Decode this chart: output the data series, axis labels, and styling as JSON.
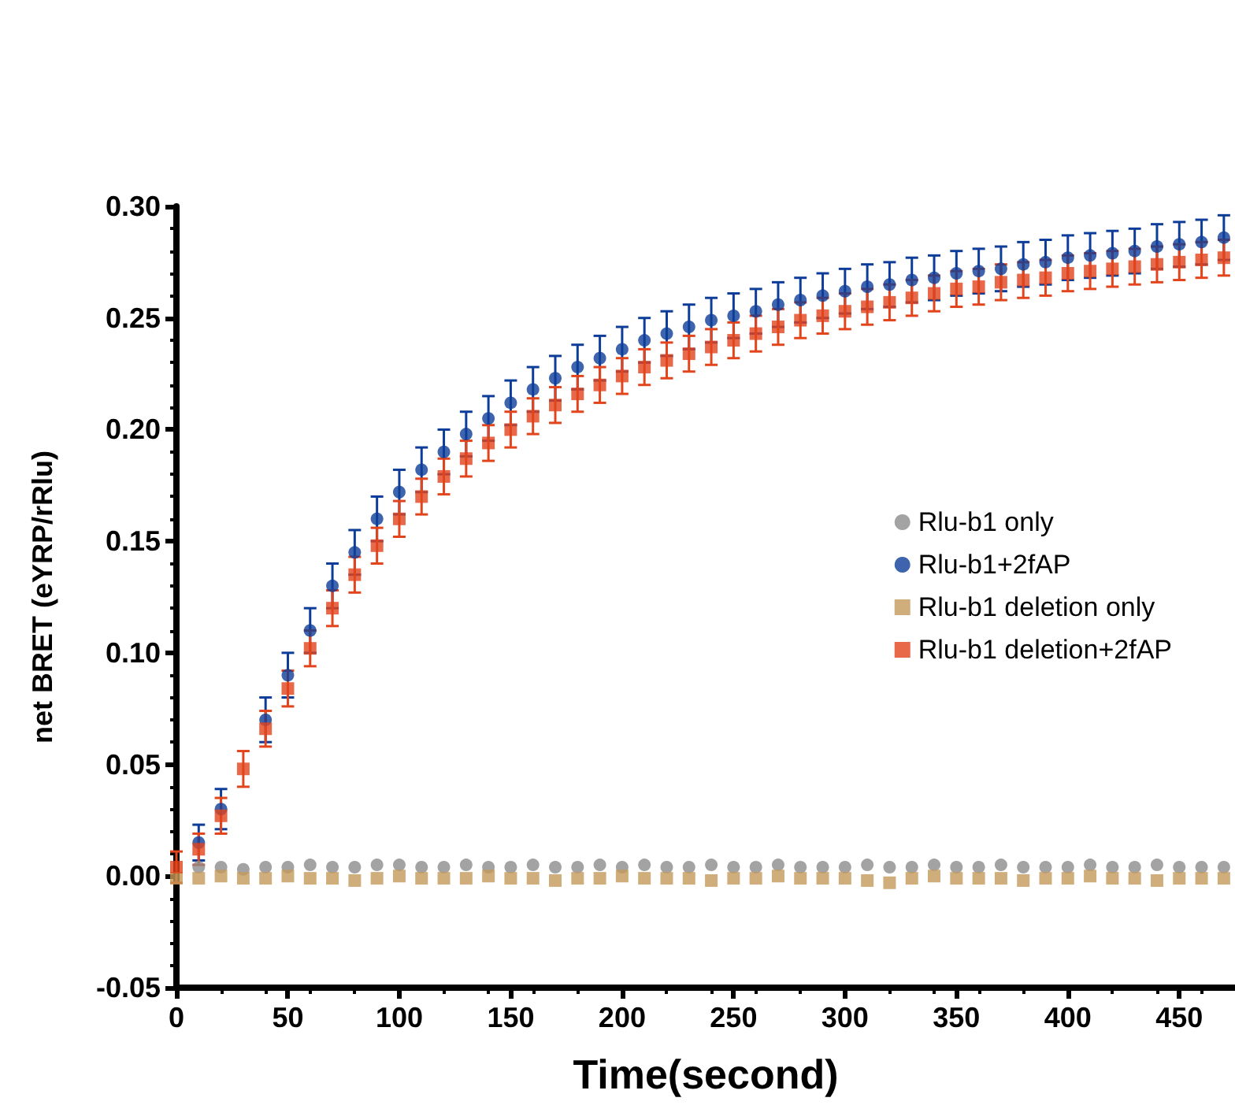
{
  "chart_data": {
    "type": "scatter",
    "xlabel": "Time(second)",
    "ylabel": "net BRET (eYRP/rRlu)",
    "x": [
      0,
      10,
      20,
      30,
      40,
      50,
      60,
      70,
      80,
      90,
      100,
      110,
      120,
      130,
      140,
      150,
      160,
      170,
      180,
      190,
      200,
      210,
      220,
      230,
      240,
      250,
      260,
      270,
      280,
      290,
      300,
      310,
      320,
      330,
      340,
      350,
      360,
      370,
      380,
      390,
      400,
      410,
      420,
      430,
      440,
      450,
      460,
      470
    ],
    "series": [
      {
        "name": "Rlu-b1 only",
        "color": "#8c8c8c",
        "marker": "circle",
        "values": [
          null,
          0.004,
          0.004,
          0.003,
          0.004,
          0.004,
          0.005,
          0.004,
          0.004,
          0.005,
          0.005,
          0.004,
          0.004,
          0.005,
          0.004,
          0.004,
          0.005,
          0.004,
          0.004,
          0.005,
          0.004,
          0.005,
          0.004,
          0.004,
          0.005,
          0.004,
          0.004,
          0.005,
          0.004,
          0.004,
          0.004,
          0.005,
          0.004,
          0.004,
          0.005,
          0.004,
          0.004,
          0.005,
          0.004,
          0.004,
          0.004,
          0.005,
          0.004,
          0.004,
          0.005,
          0.004,
          0.004,
          0.004
        ]
      },
      {
        "name": "Rlu-b1+2fAP",
        "color": "#0d3d99",
        "marker": "circle",
        "values": [
          null,
          0.015,
          0.03,
          null,
          0.07,
          0.09,
          0.11,
          0.13,
          0.145,
          0.16,
          0.172,
          0.182,
          0.19,
          0.198,
          0.205,
          0.212,
          0.218,
          0.223,
          0.228,
          0.232,
          0.236,
          0.24,
          0.243,
          0.246,
          0.249,
          0.251,
          0.253,
          0.256,
          0.258,
          0.26,
          0.262,
          0.264,
          0.265,
          0.267,
          0.268,
          0.27,
          0.271,
          0.272,
          0.274,
          0.275,
          0.277,
          0.278,
          0.279,
          0.28,
          0.282,
          0.283,
          0.284,
          0.286
        ],
        "errors": [
          null,
          0.008,
          0.009,
          null,
          0.01,
          0.01,
          0.01,
          0.01,
          0.01,
          0.01,
          0.01,
          0.01,
          0.01,
          0.01,
          0.01,
          0.01,
          0.01,
          0.01,
          0.01,
          0.01,
          0.01,
          0.01,
          0.01,
          0.01,
          0.01,
          0.01,
          0.01,
          0.01,
          0.01,
          0.01,
          0.01,
          0.01,
          0.01,
          0.01,
          0.01,
          0.01,
          0.01,
          0.01,
          0.01,
          0.01,
          0.01,
          0.01,
          0.01,
          0.01,
          0.01,
          0.01,
          0.01,
          0.01
        ]
      },
      {
        "name": "Rlu-b1 deletion only",
        "color": "#c49a5a",
        "marker": "square",
        "values": [
          -0.001,
          -0.001,
          0,
          -0.001,
          -0.001,
          0,
          -0.001,
          -0.001,
          -0.002,
          -0.001,
          0,
          -0.001,
          -0.001,
          -0.001,
          0,
          -0.001,
          -0.001,
          -0.002,
          -0.001,
          -0.001,
          0,
          -0.001,
          -0.001,
          -0.001,
          -0.002,
          -0.001,
          -0.001,
          0,
          -0.001,
          -0.001,
          -0.001,
          -0.002,
          -0.003,
          -0.001,
          0,
          -0.001,
          -0.001,
          -0.001,
          -0.002,
          -0.001,
          -0.001,
          0,
          -0.001,
          -0.001,
          -0.002,
          -0.001,
          -0.001,
          -0.001
        ]
      },
      {
        "name": "Rlu-b1 deletion+2fAP",
        "color": "#e2441c",
        "marker": "square",
        "values": [
          0.004,
          0.012,
          0.027,
          0.048,
          0.066,
          0.084,
          0.102,
          0.12,
          0.135,
          0.148,
          0.16,
          0.17,
          0.179,
          0.187,
          0.194,
          0.2,
          0.206,
          0.211,
          0.216,
          0.22,
          0.224,
          0.228,
          0.231,
          0.234,
          0.237,
          0.24,
          0.243,
          0.246,
          0.249,
          0.251,
          0.253,
          0.255,
          0.257,
          0.259,
          0.261,
          0.263,
          0.264,
          0.266,
          0.267,
          0.268,
          0.27,
          0.271,
          0.272,
          0.273,
          0.274,
          0.275,
          0.276,
          0.277
        ],
        "errors": [
          0.007,
          0.007,
          0.008,
          0.008,
          0.008,
          0.008,
          0.008,
          0.008,
          0.008,
          0.008,
          0.008,
          0.008,
          0.008,
          0.008,
          0.008,
          0.008,
          0.008,
          0.008,
          0.008,
          0.008,
          0.008,
          0.008,
          0.008,
          0.008,
          0.008,
          0.008,
          0.008,
          0.008,
          0.008,
          0.008,
          0.008,
          0.008,
          0.008,
          0.008,
          0.008,
          0.008,
          0.008,
          0.008,
          0.008,
          0.008,
          0.008,
          0.008,
          0.008,
          0.008,
          0.008,
          0.008,
          0.008,
          0.008
        ]
      }
    ],
    "xlim": [
      0,
      475
    ],
    "xticks": [
      0,
      50,
      100,
      150,
      200,
      250,
      300,
      350,
      400,
      450
    ],
    "ylim": [
      -0.05,
      0.3
    ],
    "yticks": [
      {
        "value": -0.05,
        "label": "-0.05"
      },
      {
        "value": 0,
        "label": "0.00"
      },
      {
        "value": 0.05,
        "label": "0.05"
      },
      {
        "value": 0.1,
        "label": "0.10"
      },
      {
        "value": 0.15,
        "label": "0.15"
      },
      {
        "value": 0.2,
        "label": "0.20"
      },
      {
        "value": 0.25,
        "label": "0.25"
      },
      {
        "value": 0.3,
        "label": "0.30"
      }
    ],
    "grid": false,
    "legend": "right"
  }
}
